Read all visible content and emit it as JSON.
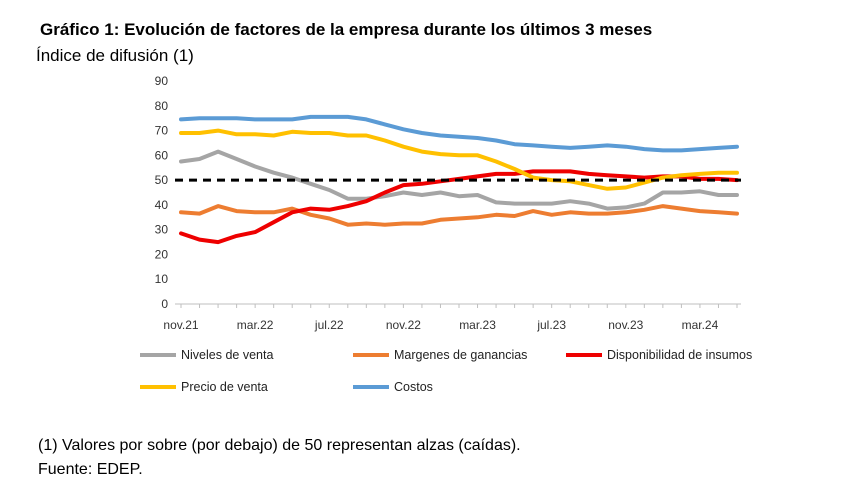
{
  "header": {
    "title": "Gráfico 1: Evolución de factores de la empresa durante los últimos 3 meses",
    "subtitle": "Índice de difusión (1)"
  },
  "notes": {
    "line1": "(1) Valores por sobre (por debajo) de 50 representan alzas (caídas).",
    "line2": "Fuente: EDEP."
  },
  "colors": {
    "niveles": "#A5A5A5",
    "margenes": "#ED7D31",
    "insumos": "#EE0000",
    "precio": "#FFC000",
    "costos": "#5B9BD5",
    "reference": "#000000",
    "axis": "#BFBFBF"
  },
  "chart_data": {
    "type": "line",
    "ylabel": "Índice de difusión (1)",
    "ylim": [
      0,
      90
    ],
    "yticks": [
      "0",
      "10",
      "20",
      "30",
      "40",
      "50",
      "60",
      "70",
      "80",
      "90"
    ],
    "x": [
      "nov.21",
      "dic.21",
      "ene.22",
      "feb.22",
      "mar.22",
      "abr.22",
      "may.22",
      "jun.22",
      "jul.22",
      "ago.22",
      "sep.22",
      "oct.22",
      "nov.22",
      "dic.22",
      "ene.23",
      "feb.23",
      "mar.23",
      "abr.23",
      "may.23",
      "jun.23",
      "jul.23",
      "ago.23",
      "sep.23",
      "oct.23",
      "nov.23",
      "dic.23",
      "ene.24",
      "feb.24",
      "mar.24",
      "abr.24",
      "may.24"
    ],
    "xtick_labels": [
      "nov.21",
      "mar.22",
      "jul.22",
      "nov.22",
      "mar.23",
      "jul.23",
      "nov.23",
      "mar.24"
    ],
    "xtick_indices": [
      0,
      4,
      8,
      12,
      16,
      20,
      24,
      28
    ],
    "reference_line": 50,
    "series": [
      {
        "key": "niveles",
        "name": "Niveles de venta",
        "values": [
          57.5,
          58.5,
          61.5,
          58.5,
          55.5,
          53,
          51,
          48.5,
          46,
          42.5,
          42.5,
          43.5,
          45,
          44,
          45,
          43.5,
          44,
          41,
          40.5,
          40.5,
          40.5,
          41.5,
          40.5,
          38.5,
          39,
          40.5,
          45,
          45,
          45.5,
          44,
          44
        ]
      },
      {
        "key": "margenes",
        "name": "Margenes de ganancias",
        "values": [
          37,
          36.5,
          39.5,
          37.5,
          37,
          37,
          38.5,
          36,
          34.5,
          32,
          32.5,
          32,
          32.5,
          32.5,
          34,
          34.5,
          35,
          36,
          35.5,
          37.5,
          36,
          37,
          36.5,
          36.5,
          37,
          38,
          39.5,
          38.5,
          37.5,
          37,
          36.5
        ]
      },
      {
        "key": "insumos",
        "name": "Disponibilidad de insumos",
        "values": [
          28.5,
          26,
          25,
          27.5,
          29,
          33,
          37,
          38.5,
          38,
          39.5,
          41.5,
          45,
          48,
          48.5,
          49.5,
          50.5,
          51.5,
          52.5,
          52.5,
          53.5,
          53.5,
          53.5,
          52.5,
          52,
          51.5,
          51,
          51.5,
          51.5,
          50.5,
          50.5,
          50
        ]
      },
      {
        "key": "precio",
        "name": "Precio de venta",
        "values": [
          69,
          69,
          70,
          68.5,
          68.5,
          68,
          69.5,
          69,
          69,
          68,
          68,
          66,
          63.5,
          61.5,
          60.5,
          60,
          60,
          57.5,
          54.5,
          51,
          50,
          49.5,
          48,
          46.5,
          47,
          49,
          51,
          52,
          52.5,
          53,
          53
        ]
      },
      {
        "key": "costos",
        "name": "Costos",
        "values": [
          74.5,
          75,
          75,
          75,
          74.5,
          74.5,
          74.5,
          75.5,
          75.5,
          75.5,
          74.5,
          72.5,
          70.5,
          69,
          68,
          67.5,
          67,
          66,
          64.5,
          64,
          63.5,
          63,
          63.5,
          64,
          63.5,
          62.5,
          62,
          62,
          62.5,
          63,
          63.5
        ]
      }
    ],
    "legend": [
      "Niveles de venta",
      "Margenes de ganancias",
      "Disponibilidad de insumos",
      "Precio de venta",
      "Costos"
    ],
    "legend_position": "bottom"
  }
}
